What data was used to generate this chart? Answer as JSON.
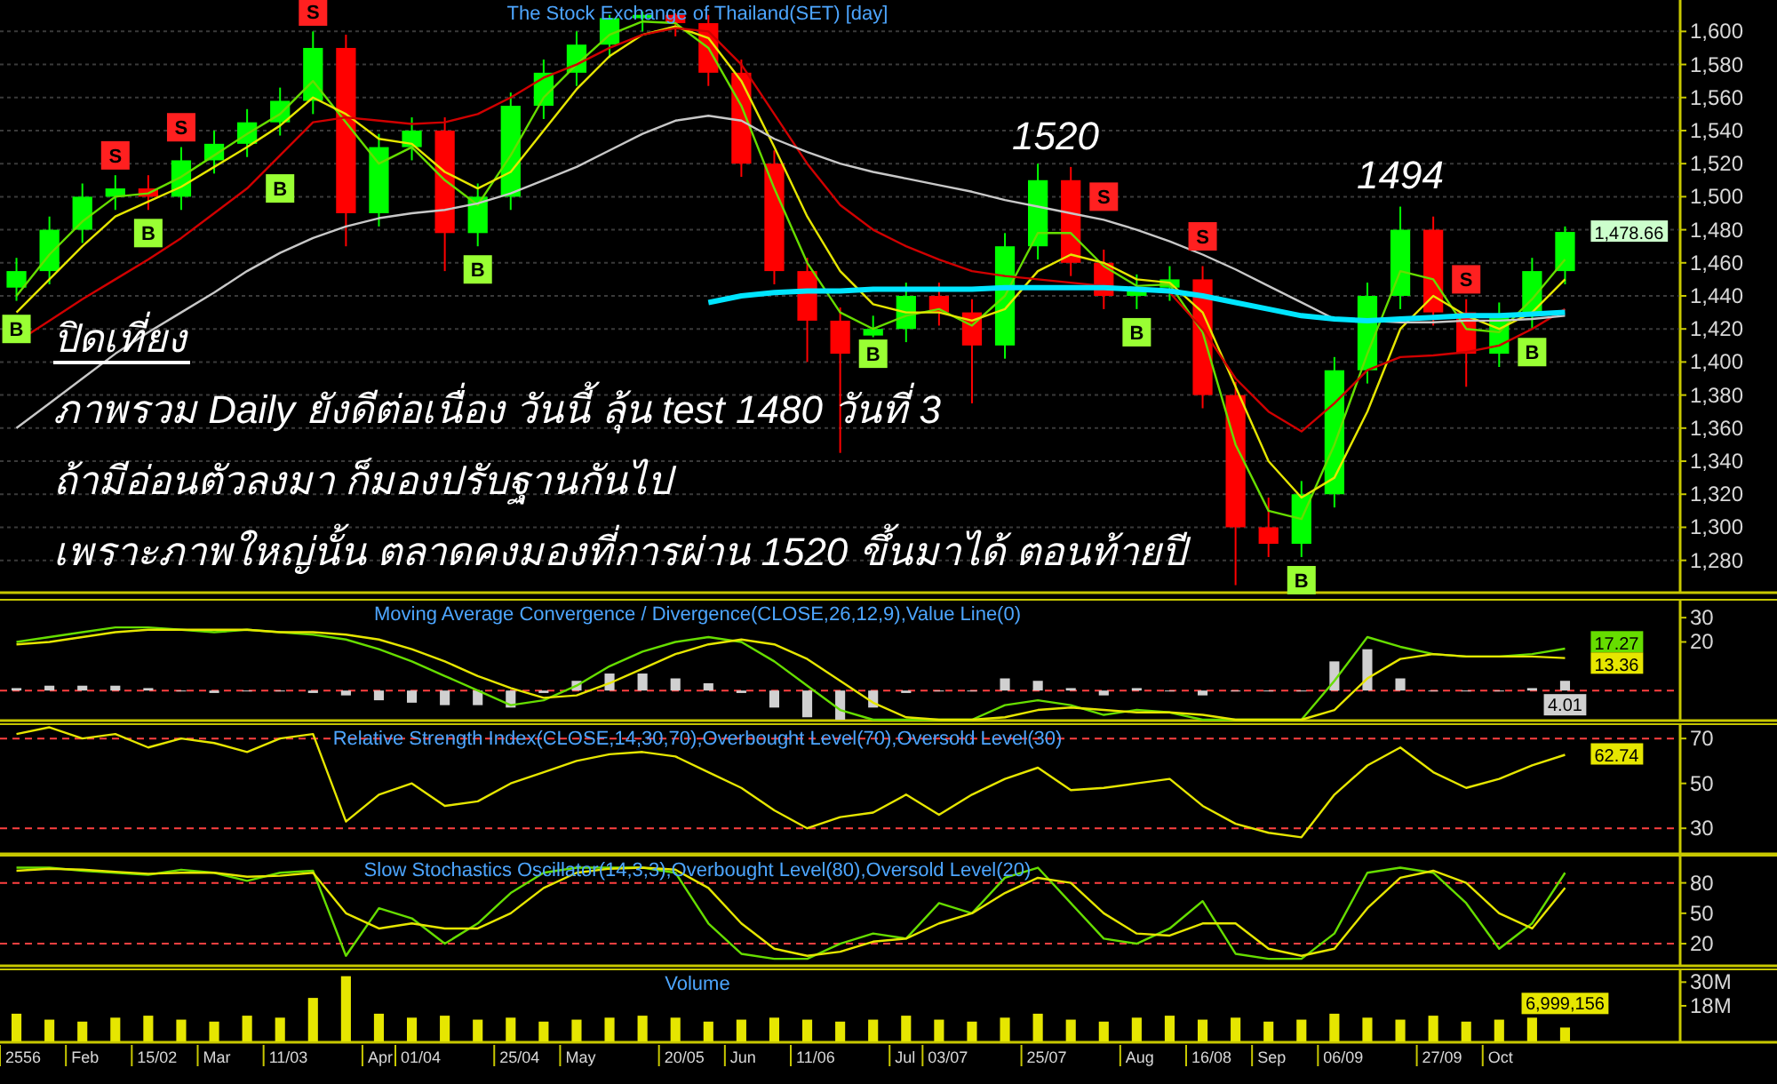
{
  "chart_data": [
    {
      "type": "candlestick",
      "title": "The Stock Exchange of Thailand(SET) [day]",
      "categories": [
        null,
        null,
        null,
        null,
        null,
        null,
        null,
        null,
        null,
        null,
        null,
        null,
        null,
        null,
        null,
        null,
        null,
        null,
        null,
        null,
        null,
        null,
        null,
        null,
        null,
        null,
        null,
        null,
        null,
        null,
        null,
        null,
        null,
        null,
        null,
        null,
        null,
        null,
        null,
        null,
        null,
        null,
        null,
        null,
        null,
        null,
        null,
        null
      ],
      "ylim": [
        1261,
        1619
      ],
      "yticks": [
        {
          "value": 1280,
          "label": "1,280"
        },
        {
          "value": 1300,
          "label": "1,300"
        },
        {
          "value": 1320,
          "label": "1,320"
        },
        {
          "value": 1340,
          "label": "1,340"
        },
        {
          "value": 1360,
          "label": "1,360"
        },
        {
          "value": 1380,
          "label": "1,380"
        },
        {
          "value": 1400,
          "label": "1,400"
        },
        {
          "value": 1420,
          "label": "1,420"
        },
        {
          "value": 1440,
          "label": "1,440"
        },
        {
          "value": 1460,
          "label": "1,460"
        },
        {
          "value": 1480,
          "label": "1,480"
        },
        {
          "value": 1500,
          "label": "1,500"
        },
        {
          "value": 1520,
          "label": "1,520"
        },
        {
          "value": 1540,
          "label": "1,540"
        },
        {
          "value": 1560,
          "label": "1,560"
        },
        {
          "value": 1580,
          "label": "1,580"
        },
        {
          "value": 1600,
          "label": "1,600"
        }
      ],
      "tick_labels": "y",
      "grid": "y",
      "ohlc": [
        [
          1445,
          1463,
          1437,
          1455
        ],
        [
          1455,
          1488,
          1447,
          1480
        ],
        [
          1480,
          1508,
          1472,
          1500
        ],
        [
          1500,
          1513,
          1492,
          1505
        ],
        [
          1505,
          1513,
          1492,
          1500
        ],
        [
          1500,
          1530,
          1492,
          1522
        ],
        [
          1522,
          1540,
          1514,
          1532
        ],
        [
          1532,
          1553,
          1524,
          1545
        ],
        [
          1545,
          1566,
          1537,
          1558
        ],
        [
          1558,
          1600,
          1550,
          1590
        ],
        [
          1590,
          1598,
          1470,
          1490
        ],
        [
          1490,
          1538,
          1482,
          1530
        ],
        [
          1530,
          1548,
          1522,
          1540
        ],
        [
          1540,
          1548,
          1455,
          1478
        ],
        [
          1478,
          1508,
          1470,
          1500
        ],
        [
          1500,
          1563,
          1492,
          1555
        ],
        [
          1555,
          1583,
          1547,
          1575
        ],
        [
          1575,
          1600,
          1567,
          1592
        ],
        [
          1592,
          1610,
          1584,
          1608
        ],
        [
          1608,
          1612,
          1600,
          1610
        ],
        [
          1610,
          1611,
          1597,
          1605
        ],
        [
          1605,
          1610,
          1567,
          1575
        ],
        [
          1575,
          1583,
          1512,
          1520
        ],
        [
          1520,
          1528,
          1447,
          1455
        ],
        [
          1455,
          1463,
          1400,
          1425
        ],
        [
          1425,
          1433,
          1345,
          1405
        ],
        [
          1416,
          1428,
          1415,
          1420
        ],
        [
          1420,
          1448,
          1412,
          1440
        ],
        [
          1440,
          1448,
          1422,
          1430
        ],
        [
          1430,
          1438,
          1375,
          1410
        ],
        [
          1410,
          1478,
          1402,
          1470
        ],
        [
          1470,
          1520,
          1462,
          1510
        ],
        [
          1510,
          1518,
          1452,
          1460
        ],
        [
          1460,
          1468,
          1432,
          1440
        ],
        [
          1440,
          1453,
          1432,
          1445
        ],
        [
          1445,
          1458,
          1437,
          1450
        ],
        [
          1450,
          1458,
          1372,
          1380
        ],
        [
          1380,
          1388,
          1265,
          1300
        ],
        [
          1300,
          1318,
          1282,
          1290
        ],
        [
          1290,
          1328,
          1282,
          1320
        ],
        [
          1320,
          1403,
          1312,
          1395
        ],
        [
          1395,
          1448,
          1387,
          1440
        ],
        [
          1440,
          1494,
          1432,
          1480
        ],
        [
          1480,
          1488,
          1422,
          1430
        ],
        [
          1430,
          1438,
          1385,
          1405
        ],
        [
          1405,
          1436,
          1397,
          1428
        ],
        [
          1428,
          1463,
          1420,
          1455
        ],
        [
          1455,
          1482,
          1447,
          1478.66
        ]
      ],
      "colors": [
        "#00ff00",
        "#00ff00",
        "#00ff00",
        "#00ff00",
        "#ff0000",
        "#00ff00",
        "#00ff00",
        "#00ff00",
        "#00ff00",
        "#00ff00",
        "#ff0000",
        "#00ff00",
        "#00ff00",
        "#ff0000",
        "#00ff00",
        "#00ff00",
        "#00ff00",
        "#00ff00",
        "#00ff00",
        "#00ff00",
        "#ff0000",
        "#ff0000",
        "#ff0000",
        "#ff0000",
        "#ff0000",
        "#ff0000",
        "#00ff00",
        "#00ff00",
        "#ff0000",
        "#ff0000",
        "#00ff00",
        "#00ff00",
        "#ff0000",
        "#ff0000",
        "#00ff00",
        "#00ff00",
        "#ff0000",
        "#ff0000",
        "#ff0000",
        "#00ff00",
        "#00ff00",
        "#00ff00",
        "#00ff00",
        "#ff0000",
        "#ff0000",
        "#00ff00",
        "#00ff00",
        "#00ff00"
      ],
      "value_labels": [
        null,
        null,
        null,
        null,
        null,
        null,
        null,
        null,
        null,
        null,
        null,
        null,
        null,
        null,
        null,
        null,
        null,
        null,
        null,
        null,
        null,
        null,
        null,
        null,
        null,
        null,
        null,
        null,
        null,
        null,
        null,
        null,
        null,
        null,
        null,
        null,
        null,
        null,
        null,
        null,
        null,
        null,
        null,
        null,
        null,
        null,
        null,
        "1,478.66"
      ],
      "series": [
        {
          "type": "line",
          "color": "#66dd00",
          "values": [
            1440,
            1465,
            1485,
            1500,
            1502,
            1512,
            1525,
            1538,
            1550,
            1570,
            1545,
            1520,
            1530,
            1510,
            1495,
            1525,
            1560,
            1580,
            1598,
            1606,
            1605,
            1590,
            1555,
            1505,
            1460,
            1430,
            1420,
            1428,
            1432,
            1422,
            1440,
            1478,
            1478,
            1458,
            1446,
            1447,
            1418,
            1350,
            1310,
            1305,
            1350,
            1405,
            1455,
            1450,
            1420,
            1418,
            1438,
            1462
          ]
        },
        {
          "type": "line",
          "color": "#e6e600",
          "values": [
            1430,
            1450,
            1470,
            1488,
            1497,
            1506,
            1518,
            1530,
            1543,
            1560,
            1550,
            1535,
            1532,
            1515,
            1505,
            1515,
            1540,
            1565,
            1585,
            1598,
            1603,
            1596,
            1570,
            1530,
            1488,
            1455,
            1435,
            1430,
            1430,
            1425,
            1432,
            1455,
            1465,
            1460,
            1450,
            1448,
            1430,
            1385,
            1340,
            1318,
            1330,
            1370,
            1420,
            1440,
            1428,
            1420,
            1430,
            1450
          ]
        },
        {
          "type": "line",
          "color": "#d00000",
          "values": [
            1412,
            1425,
            1438,
            1450,
            1462,
            1475,
            1490,
            1505,
            1525,
            1545,
            1548,
            1546,
            1544,
            1545,
            1550,
            1560,
            1572,
            1580,
            1590,
            1598,
            1602,
            1600,
            1580,
            1550,
            1520,
            1495,
            1480,
            1470,
            1462,
            1455,
            1452,
            1450,
            1448,
            1446,
            1444,
            1442,
            1420,
            1390,
            1370,
            1358,
            1375,
            1395,
            1403,
            1404,
            1406,
            1410,
            1420,
            1432
          ]
        },
        {
          "type": "line",
          "color": "#c8c8c8",
          "values": [
            1360,
            1375,
            1390,
            1405,
            1418,
            1430,
            1442,
            1455,
            1466,
            1475,
            1482,
            1487,
            1490,
            1492,
            1496,
            1502,
            1510,
            1518,
            1528,
            1538,
            1546,
            1549,
            1546,
            1535,
            1527,
            1520,
            1515,
            1511,
            1507,
            1503,
            1498,
            1494,
            1490,
            1486,
            1480,
            1473,
            1465,
            1456,
            1446,
            1436,
            1426,
            1425,
            1424,
            1424,
            1425,
            1425,
            1426,
            1428
          ]
        },
        {
          "type": "line",
          "color": "#00e5ff",
          "values": [
            null,
            null,
            null,
            null,
            null,
            null,
            null,
            null,
            null,
            null,
            null,
            null,
            null,
            null,
            null,
            null,
            null,
            null,
            null,
            null,
            null,
            1436,
            1440,
            1442,
            1443,
            1443,
            1444,
            1444,
            1444,
            1444,
            1445,
            1445,
            1445,
            1445,
            1444,
            1443,
            1440,
            1436,
            1432,
            1428,
            1426,
            1425,
            1426,
            1427,
            1428,
            1428,
            1429,
            1430
          ]
        },
        {
          "type": "scatter",
          "name": "B",
          "marker": "square",
          "color": "#99ff33",
          "values": [
            1420,
            null,
            null,
            null,
            1478,
            null,
            null,
            null,
            1505,
            null,
            null,
            null,
            null,
            null,
            1456,
            null,
            null,
            null,
            null,
            null,
            null,
            null,
            null,
            null,
            null,
            null,
            1405,
            null,
            null,
            null,
            null,
            null,
            null,
            null,
            1418,
            null,
            null,
            null,
            null,
            1268,
            null,
            null,
            null,
            null,
            null,
            null,
            1406,
            null
          ]
        },
        {
          "type": "scatter",
          "name": "S",
          "marker": "square",
          "color": "#ff2020",
          "values": [
            null,
            null,
            null,
            1525,
            null,
            1542,
            null,
            null,
            null,
            1612,
            null,
            null,
            null,
            null,
            null,
            null,
            null,
            null,
            null,
            null,
            null,
            null,
            null,
            null,
            null,
            null,
            null,
            null,
            null,
            null,
            null,
            null,
            null,
            1500,
            null,
            null,
            1476,
            null,
            null,
            null,
            null,
            null,
            null,
            null,
            1450,
            null,
            null,
            null
          ]
        }
      ],
      "annotations": [
        "ปิดเที่ยง",
        "ภาพรวม Daily ยังดีต่อเนื่อง วันนี้ ลุ้น test 1480 วันที่ 3",
        "ถ้ามีอ่อนตัวลงมา ก็มองปรับฐานกันไป",
        "เพราะภาพใหญ่นั้น ตลาดคงมองที่การผ่าน 1520 ขึ้นมาได้ ตอนท้ายปี",
        "1520",
        "1494"
      ]
    },
    {
      "type": "line",
      "title": "Moving Average Convergence / Divergence(CLOSE,26,12,9),Value Line(0)",
      "categories": [
        null,
        null,
        null,
        null,
        null,
        null,
        null,
        null,
        null,
        null,
        null,
        null,
        null,
        null,
        null,
        null,
        null,
        null,
        null,
        null,
        null,
        null,
        null,
        null,
        null,
        null,
        null,
        null,
        null,
        null,
        null,
        null,
        null,
        null,
        null,
        null,
        null,
        null,
        null,
        null,
        null,
        null,
        null,
        null,
        null,
        null,
        null,
        null
      ],
      "ylim": [
        -12,
        37
      ],
      "yticks": [
        20,
        30
      ],
      "tick_labels": "y",
      "ref_lines": [
        {
          "axis": "y",
          "value": 0,
          "color": "#ff4040",
          "line_style": "dashed"
        }
      ],
      "series": [
        {
          "type": "bar",
          "color": "#d0d0d0",
          "values": [
            1,
            2,
            2,
            2,
            1,
            0,
            -1,
            0,
            0,
            -1,
            -2,
            -4,
            -5,
            -6,
            -6,
            -7,
            -1,
            4,
            7,
            7,
            5,
            3,
            -1,
            -7,
            -11,
            -12,
            -7,
            -1,
            0,
            0,
            5,
            4,
            1,
            -2,
            1,
            0,
            -2,
            0,
            0,
            0,
            12,
            17,
            5,
            0,
            0,
            0,
            1,
            4.01
          ],
          "value_labels": [
            null,
            null,
            null,
            null,
            null,
            null,
            null,
            null,
            null,
            null,
            null,
            null,
            null,
            null,
            null,
            null,
            null,
            null,
            null,
            null,
            null,
            null,
            null,
            null,
            null,
            null,
            null,
            null,
            null,
            null,
            null,
            null,
            null,
            null,
            null,
            null,
            null,
            null,
            null,
            null,
            null,
            null,
            null,
            null,
            null,
            null,
            null,
            "4.01"
          ]
        },
        {
          "color": "#66dd00",
          "values": [
            20,
            22,
            24,
            26,
            26,
            25,
            24,
            25,
            24,
            23,
            21,
            17,
            12,
            6,
            0,
            -6,
            -4,
            2,
            10,
            16,
            20,
            22,
            20,
            12,
            2,
            -8,
            -12,
            -12,
            -12,
            -12,
            -6,
            -4,
            -6,
            -10,
            -8,
            -9,
            -12,
            -12,
            -12,
            -12,
            4,
            22,
            18,
            15,
            14,
            14,
            15,
            17.27
          ],
          "value_labels": [
            null,
            null,
            null,
            null,
            null,
            null,
            null,
            null,
            null,
            null,
            null,
            null,
            null,
            null,
            null,
            null,
            null,
            null,
            null,
            null,
            null,
            null,
            null,
            null,
            null,
            null,
            null,
            null,
            null,
            null,
            null,
            null,
            null,
            null,
            null,
            null,
            null,
            null,
            null,
            null,
            null,
            null,
            null,
            null,
            null,
            null,
            null,
            "17.27"
          ]
        },
        {
          "color": "#e6e600",
          "values": [
            19,
            20,
            22,
            24,
            25,
            25,
            25,
            25,
            24,
            24,
            23,
            21,
            17,
            12,
            6,
            1,
            -3,
            -2,
            3,
            9,
            15,
            19,
            21,
            19,
            13,
            4,
            -5,
            -11,
            -12,
            -12,
            -11,
            -8,
            -7,
            -8,
            -9,
            -9,
            -10,
            -12,
            -12,
            -12,
            -8,
            5,
            13,
            15,
            14,
            14,
            14,
            13.36
          ],
          "value_labels": [
            null,
            null,
            null,
            null,
            null,
            null,
            null,
            null,
            null,
            null,
            null,
            null,
            null,
            null,
            null,
            null,
            null,
            null,
            null,
            null,
            null,
            null,
            null,
            null,
            null,
            null,
            null,
            null,
            null,
            null,
            null,
            null,
            null,
            null,
            null,
            null,
            null,
            null,
            null,
            null,
            null,
            null,
            null,
            null,
            null,
            null,
            null,
            "13.36"
          ]
        }
      ]
    },
    {
      "type": "line",
      "title": "Relative Strength Index(CLOSE,14,30,70),Overbought Level(70),Oversold Level(30)",
      "categories": [
        null,
        null,
        null,
        null,
        null,
        null,
        null,
        null,
        null,
        null,
        null,
        null,
        null,
        null,
        null,
        null,
        null,
        null,
        null,
        null,
        null,
        null,
        null,
        null,
        null,
        null,
        null,
        null,
        null,
        null,
        null,
        null,
        null,
        null,
        null,
        null,
        null,
        null,
        null,
        null,
        null,
        null,
        null,
        null,
        null,
        null,
        null,
        null
      ],
      "ylim": [
        19,
        76
      ],
      "yticks": [
        30,
        50,
        70
      ],
      "tick_labels": "y",
      "ref_lines": [
        {
          "axis": "y",
          "value": 70,
          "color": "#ff4040",
          "line_style": "dashed"
        },
        {
          "axis": "y",
          "value": 30,
          "color": "#ff4040",
          "line_style": "dashed"
        }
      ],
      "series": [
        {
          "color": "#e6e600",
          "values": [
            72,
            75,
            70,
            72,
            66,
            70,
            68,
            64,
            70,
            72,
            33,
            45,
            50,
            40,
            42,
            50,
            55,
            60,
            63,
            64,
            62,
            55,
            48,
            38,
            30,
            35,
            37,
            45,
            36,
            45,
            52,
            57,
            47,
            48,
            50,
            52,
            40,
            32,
            28,
            26,
            45,
            58,
            66,
            55,
            48,
            52,
            58,
            62.74
          ],
          "value_labels": [
            null,
            null,
            null,
            null,
            null,
            null,
            null,
            null,
            null,
            null,
            null,
            null,
            null,
            null,
            null,
            null,
            null,
            null,
            null,
            null,
            null,
            null,
            null,
            null,
            null,
            null,
            null,
            null,
            null,
            null,
            null,
            null,
            null,
            null,
            null,
            null,
            null,
            null,
            null,
            null,
            null,
            null,
            null,
            null,
            null,
            null,
            null,
            "62.74"
          ]
        }
      ]
    },
    {
      "type": "line",
      "title": "Slow Stochastics Oscillator(14,3,3),Overbought Level(80),Oversold Level(20)",
      "categories": [
        null,
        null,
        null,
        null,
        null,
        null,
        null,
        null,
        null,
        null,
        null,
        null,
        null,
        null,
        null,
        null,
        null,
        null,
        null,
        null,
        null,
        null,
        null,
        null,
        null,
        null,
        null,
        null,
        null,
        null,
        null,
        null,
        null,
        null,
        null,
        null,
        null,
        null,
        null,
        null,
        null,
        null,
        null,
        null,
        null,
        null,
        null,
        null
      ],
      "ylim": [
        -1,
        106
      ],
      "yticks": [
        20,
        50,
        80
      ],
      "tick_labels": "y",
      "ref_lines": [
        {
          "axis": "y",
          "value": 80,
          "color": "#ff4040",
          "line_style": "dashed"
        },
        {
          "axis": "y",
          "value": 20,
          "color": "#ff4040",
          "line_style": "dashed"
        }
      ],
      "series": [
        {
          "color": "#66dd00",
          "values": [
            95,
            95,
            92,
            90,
            88,
            93,
            90,
            82,
            90,
            92,
            8,
            55,
            45,
            20,
            40,
            70,
            90,
            95,
            95,
            95,
            90,
            40,
            10,
            5,
            5,
            20,
            30,
            25,
            60,
            50,
            85,
            95,
            60,
            25,
            20,
            35,
            62,
            10,
            5,
            5,
            30,
            90,
            95,
            90,
            60,
            15,
            40,
            90
          ]
        },
        {
          "color": "#e6e600",
          "values": [
            92,
            94,
            93,
            91,
            89,
            90,
            90,
            86,
            87,
            90,
            50,
            35,
            40,
            35,
            35,
            50,
            75,
            90,
            94,
            95,
            93,
            75,
            40,
            15,
            8,
            12,
            22,
            25,
            40,
            50,
            70,
            85,
            80,
            50,
            30,
            28,
            40,
            40,
            15,
            8,
            15,
            55,
            85,
            92,
            80,
            50,
            35,
            75
          ]
        }
      ]
    },
    {
      "type": "bar",
      "title": "Volume",
      "categories": [
        "2556",
        null,
        "Feb",
        null,
        "15/02",
        null,
        "Mar",
        null,
        "11/03",
        null,
        null,
        "Apr",
        "01/04",
        null,
        null,
        "25/04",
        null,
        "May",
        null,
        null,
        "20/05",
        null,
        "Jun",
        null,
        "11/06",
        null,
        null,
        "Jul",
        "03/07",
        null,
        null,
        "25/07",
        null,
        null,
        "Aug",
        null,
        "16/08",
        null,
        "Sep",
        null,
        "06/09",
        null,
        null,
        "27/09",
        null,
        "Oct",
        null,
        null
      ],
      "ylim": [
        0,
        36000000
      ],
      "yticks": [
        {
          "value": 18000000,
          "label": "18M"
        },
        {
          "value": 30000000,
          "label": "30M"
        }
      ],
      "series": [
        {
          "color": "#e6e600",
          "values": [
            14000000,
            11000000,
            10000000,
            12000000,
            13000000,
            11000000,
            10000000,
            13000000,
            12000000,
            22000000,
            33000000,
            14000000,
            12000000,
            13000000,
            11000000,
            12000000,
            10000000,
            11000000,
            12000000,
            13000000,
            12000000,
            10000000,
            11000000,
            12000000,
            11000000,
            10000000,
            11000000,
            13000000,
            11000000,
            10000000,
            12000000,
            14000000,
            11000000,
            10000000,
            12000000,
            13000000,
            11000000,
            12000000,
            10000000,
            11000000,
            14000000,
            12000000,
            11000000,
            13000000,
            10000000,
            11000000,
            12000000,
            6999156
          ],
          "value_labels": [
            null,
            null,
            null,
            null,
            null,
            null,
            null,
            null,
            null,
            null,
            null,
            null,
            null,
            null,
            null,
            null,
            null,
            null,
            null,
            null,
            null,
            null,
            null,
            null,
            null,
            null,
            null,
            null,
            null,
            null,
            null,
            null,
            null,
            null,
            null,
            null,
            null,
            null,
            null,
            null,
            null,
            null,
            null,
            null,
            null,
            null,
            null,
            "6,999,156"
          ]
        }
      ]
    }
  ]
}
